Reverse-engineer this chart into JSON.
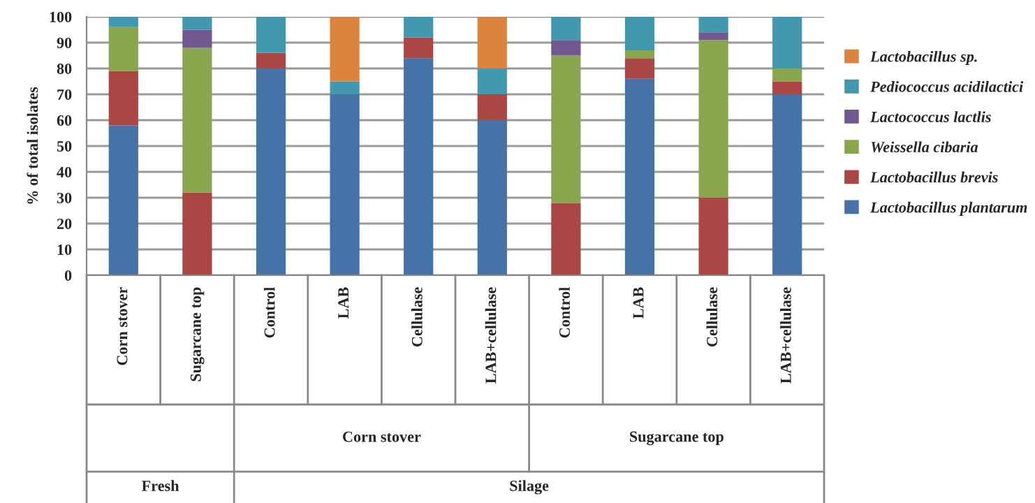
{
  "chart_data": {
    "type": "bar",
    "stacked": true,
    "ylabel": "% of total isolates",
    "categories": [
      "Corn stover",
      "Sugarcane top",
      "Control",
      "LAB",
      "Cellulase",
      "LAB+cellulase",
      "Control",
      "LAB",
      "Cellulase",
      "LAB+cellulase"
    ],
    "series": [
      {
        "name": "Lactobacillus plantarum",
        "color": "#4572a7",
        "values": [
          58,
          0,
          80,
          70,
          84,
          60,
          0,
          76,
          0,
          70
        ]
      },
      {
        "name": "Lactobacillus brevis",
        "color": "#aa4643",
        "values": [
          21,
          32,
          6,
          0,
          8,
          10,
          28,
          8,
          30,
          5
        ]
      },
      {
        "name": "Weissella cibaria",
        "color": "#89a54e",
        "values": [
          17,
          56,
          0,
          0,
          0,
          0,
          57,
          3,
          61,
          5
        ]
      },
      {
        "name": "Lactococcus lactlis",
        "color": "#71588f",
        "values": [
          0,
          7,
          0,
          0,
          0,
          0,
          6,
          0,
          3,
          0
        ]
      },
      {
        "name": "Pediococcus acidilactici",
        "color": "#4198af",
        "values": [
          4,
          5,
          14,
          5,
          8,
          10,
          9,
          13,
          6,
          20
        ]
      },
      {
        "name": "Lactobacillus sp.",
        "color": "#db843d",
        "values": [
          0,
          0,
          0,
          25,
          0,
          20,
          0,
          0,
          0,
          0
        ]
      }
    ],
    "ylim": [
      0,
      100
    ],
    "yticks": [
      0,
      10,
      20,
      30,
      40,
      50,
      60,
      70,
      80,
      90,
      100
    ],
    "grid": "y",
    "legend": "right",
    "annotations": [
      "Corn stover",
      "Sugarcane top",
      "Fresh",
      "Silage"
    ]
  }
}
